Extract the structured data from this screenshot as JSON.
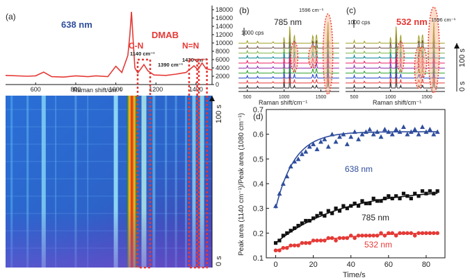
{
  "chart_data": [
    {
      "panel": "(a)",
      "type": "line",
      "note_labels": [
        "638 nm",
        "DMAB",
        "C-N",
        "N=N"
      ],
      "peak_labels": [
        "1140 cm⁻¹",
        "1390 cm⁻¹",
        "1430 cm⁻¹"
      ],
      "xlabel": "Raman shift/cm⁻¹",
      "xlim": [
        450,
        1480
      ],
      "ylim": [
        0,
        18000
      ],
      "xticks": [
        "600",
        "800",
        "1000",
        "1200",
        "1400"
      ],
      "yticks": [
        "0",
        "2000",
        "4000",
        "6000",
        "8000",
        "10000",
        "12000",
        "14000",
        "16000",
        "18000"
      ],
      "line_color": "#e53935",
      "x": [
        450,
        560,
        600,
        640,
        680,
        740,
        800,
        860,
        900,
        960,
        1000,
        1030,
        1060,
        1070,
        1078,
        1086,
        1095,
        1110,
        1140,
        1160,
        1190,
        1250,
        1300,
        1350,
        1390,
        1410,
        1430,
        1450,
        1480
      ],
      "y": [
        2200,
        2000,
        2100,
        3000,
        1900,
        1800,
        2100,
        1900,
        2100,
        1900,
        4400,
        2900,
        7000,
        12000,
        17500,
        11000,
        4000,
        2800,
        4800,
        3300,
        2300,
        2200,
        2500,
        2900,
        4500,
        3600,
        5200,
        3800,
        3500
      ]
    },
    {
      "panel": "(b)",
      "type": "line",
      "laser": "785 nm",
      "peak_label": "1596 cm⁻¹",
      "scale_label": "1000 cps",
      "time_label": "100 s",
      "time_start": "0 s",
      "xlabel": "Raman shift/cm⁻¹",
      "xticks": [
        "500",
        "1000",
        "1500"
      ],
      "xlim": [
        380,
        1750
      ],
      "n_series": 10
    },
    {
      "panel": "(c)",
      "type": "line",
      "laser": "532 nm",
      "peak_label": "1596 cm⁻¹",
      "scale_label": "1000 cps",
      "time_label": "100 s",
      "time_start": "0 s",
      "xlabel": "Raman shift/cm⁻¹",
      "xticks": [
        "500",
        "1000",
        "1500"
      ],
      "xlim": [
        380,
        1750
      ],
      "n_series": 10
    },
    {
      "panel": "(d)",
      "type": "scatter",
      "xlabel": "Time/s",
      "ylabel": "Peak area (1140 cm⁻¹)/Peak area (1080 cm⁻¹)",
      "xlim": [
        -5,
        90
      ],
      "ylim": [
        0.1,
        0.7
      ],
      "xticks": [
        "0",
        "20",
        "40",
        "60",
        "80"
      ],
      "yticks": [
        "0.1",
        "0.2",
        "0.3",
        "0.4",
        "0.5",
        "0.6",
        "0.7"
      ],
      "series": [
        {
          "name": "638 nm",
          "color": "#2f4d9c",
          "marker": "triangle",
          "x": [
            0,
            2,
            4,
            6,
            8,
            10,
            12,
            14,
            16,
            18,
            20,
            22,
            24,
            26,
            28,
            30,
            32,
            34,
            36,
            38,
            40,
            42,
            44,
            46,
            48,
            50,
            52,
            54,
            56,
            58,
            60,
            62,
            64,
            66,
            68,
            70,
            72,
            74,
            76,
            78,
            80,
            82,
            84,
            86
          ],
          "y": [
            0.31,
            0.36,
            0.4,
            0.43,
            0.47,
            0.49,
            0.5,
            0.52,
            0.53,
            0.55,
            0.56,
            0.54,
            0.57,
            0.58,
            0.55,
            0.6,
            0.57,
            0.59,
            0.6,
            0.56,
            0.59,
            0.61,
            0.58,
            0.6,
            0.61,
            0.62,
            0.6,
            0.61,
            0.59,
            0.62,
            0.61,
            0.6,
            0.62,
            0.61,
            0.63,
            0.6,
            0.61,
            0.62,
            0.6,
            0.63,
            0.61,
            0.62,
            0.6,
            0.61
          ]
        },
        {
          "name": "785 nm",
          "color": "#111111",
          "marker": "square",
          "x": [
            0,
            2,
            4,
            6,
            8,
            10,
            12,
            14,
            16,
            18,
            20,
            22,
            24,
            26,
            28,
            30,
            32,
            34,
            36,
            38,
            40,
            42,
            44,
            46,
            48,
            50,
            52,
            54,
            56,
            58,
            60,
            62,
            64,
            66,
            68,
            70,
            72,
            74,
            76,
            78,
            80,
            82,
            84,
            86
          ],
          "y": [
            0.16,
            0.17,
            0.19,
            0.2,
            0.21,
            0.22,
            0.23,
            0.24,
            0.25,
            0.25,
            0.26,
            0.27,
            0.28,
            0.27,
            0.29,
            0.28,
            0.3,
            0.29,
            0.31,
            0.3,
            0.31,
            0.32,
            0.31,
            0.33,
            0.32,
            0.32,
            0.34,
            0.33,
            0.33,
            0.34,
            0.35,
            0.34,
            0.35,
            0.34,
            0.36,
            0.35,
            0.34,
            0.36,
            0.35,
            0.37,
            0.36,
            0.37,
            0.36,
            0.37
          ]
        },
        {
          "name": "532 nm",
          "color": "#e53935",
          "marker": "circle",
          "x": [
            0,
            2,
            4,
            6,
            8,
            10,
            12,
            14,
            16,
            18,
            20,
            22,
            24,
            26,
            28,
            30,
            32,
            34,
            36,
            38,
            40,
            42,
            44,
            46,
            48,
            50,
            52,
            54,
            56,
            58,
            60,
            62,
            64,
            66,
            68,
            70,
            72,
            74,
            76,
            78,
            80,
            82,
            84,
            86
          ],
          "y": [
            0.13,
            0.13,
            0.14,
            0.14,
            0.15,
            0.15,
            0.15,
            0.16,
            0.16,
            0.16,
            0.17,
            0.17,
            0.17,
            0.17,
            0.18,
            0.18,
            0.17,
            0.18,
            0.18,
            0.18,
            0.19,
            0.18,
            0.19,
            0.19,
            0.19,
            0.19,
            0.19,
            0.19,
            0.2,
            0.19,
            0.2,
            0.2,
            0.19,
            0.2,
            0.2,
            0.2,
            0.2,
            0.19,
            0.2,
            0.2,
            0.2,
            0.2,
            0.2,
            0.2
          ]
        }
      ]
    },
    {
      "panel": "heatmap",
      "type": "heatmap",
      "time_label": "100 s",
      "time_start": "0 s",
      "xlim": [
        450,
        1480
      ]
    }
  ]
}
